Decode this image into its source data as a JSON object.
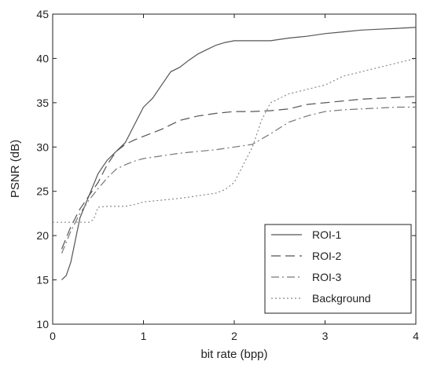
{
  "chart_data": {
    "type": "line",
    "xlabel": "bit rate (bpp)",
    "ylabel": "PSNR (dB)",
    "xlim": [
      0,
      4
    ],
    "ylim": [
      10,
      45
    ],
    "xticks": [
      "0",
      "1",
      "2",
      "3",
      "4"
    ],
    "yticks": [
      "10",
      "15",
      "20",
      "25",
      "30",
      "35",
      "40",
      "45"
    ],
    "grid": false,
    "legend_position": "bottom-right",
    "series": [
      {
        "name": "ROI-1",
        "style": "solid",
        "color": "#555555",
        "x": [
          0.1,
          0.15,
          0.2,
          0.25,
          0.3,
          0.4,
          0.5,
          0.6,
          0.7,
          0.8,
          0.9,
          1.0,
          1.1,
          1.2,
          1.3,
          1.4,
          1.5,
          1.6,
          1.7,
          1.8,
          1.9,
          2.0,
          2.2,
          2.4,
          2.6,
          2.8,
          3.0,
          3.2,
          3.4,
          3.6,
          3.8,
          4.0
        ],
        "y": [
          15.0,
          15.5,
          17.0,
          19.5,
          22.0,
          24.5,
          27.0,
          28.5,
          29.5,
          30.5,
          32.5,
          34.5,
          35.5,
          37.0,
          38.5,
          39.0,
          39.8,
          40.5,
          41.0,
          41.5,
          41.8,
          42.0,
          42.0,
          42.0,
          42.3,
          42.5,
          42.8,
          43.0,
          43.2,
          43.3,
          43.4,
          43.5
        ]
      },
      {
        "name": "ROI-2",
        "style": "dashed",
        "color": "#555555",
        "x": [
          0.1,
          0.2,
          0.3,
          0.4,
          0.5,
          0.6,
          0.7,
          0.8,
          0.9,
          1.0,
          1.2,
          1.4,
          1.6,
          1.8,
          2.0,
          2.2,
          2.4,
          2.6,
          2.8,
          3.0,
          3.2,
          3.4,
          3.6,
          3.8,
          4.0
        ],
        "y": [
          18.5,
          21.0,
          23.0,
          24.5,
          26.0,
          28.0,
          29.5,
          30.3,
          30.8,
          31.2,
          32.0,
          33.0,
          33.5,
          33.8,
          34.0,
          34.0,
          34.1,
          34.3,
          34.8,
          35.0,
          35.2,
          35.4,
          35.5,
          35.6,
          35.7
        ]
      },
      {
        "name": "ROI-3",
        "style": "dashdot",
        "color": "#777777",
        "x": [
          0.1,
          0.2,
          0.3,
          0.4,
          0.5,
          0.6,
          0.7,
          0.8,
          0.9,
          1.0,
          1.2,
          1.4,
          1.6,
          1.8,
          2.0,
          2.2,
          2.4,
          2.6,
          2.8,
          3.0,
          3.2,
          3.4,
          3.6,
          3.8,
          4.0
        ],
        "y": [
          18.0,
          20.5,
          22.5,
          24.0,
          25.3,
          26.5,
          27.5,
          28.0,
          28.4,
          28.7,
          29.0,
          29.3,
          29.5,
          29.7,
          30.0,
          30.3,
          31.5,
          32.8,
          33.5,
          34.0,
          34.2,
          34.3,
          34.4,
          34.5,
          34.5
        ]
      },
      {
        "name": "Background",
        "style": "dotted",
        "color": "#888888",
        "x": [
          0.0,
          0.2,
          0.3,
          0.4,
          0.45,
          0.5,
          0.6,
          0.7,
          0.8,
          0.9,
          1.0,
          1.2,
          1.4,
          1.6,
          1.8,
          1.9,
          2.0,
          2.1,
          2.2,
          2.3,
          2.4,
          2.6,
          2.8,
          3.0,
          3.2,
          3.4,
          3.6,
          3.8,
          4.0
        ],
        "y": [
          21.5,
          21.5,
          21.5,
          21.5,
          21.8,
          23.2,
          23.3,
          23.3,
          23.3,
          23.5,
          23.8,
          24.0,
          24.2,
          24.5,
          24.8,
          25.2,
          26.0,
          28.0,
          30.0,
          33.0,
          35.0,
          36.0,
          36.5,
          37.0,
          38.0,
          38.5,
          39.0,
          39.5,
          40.0
        ]
      }
    ]
  }
}
